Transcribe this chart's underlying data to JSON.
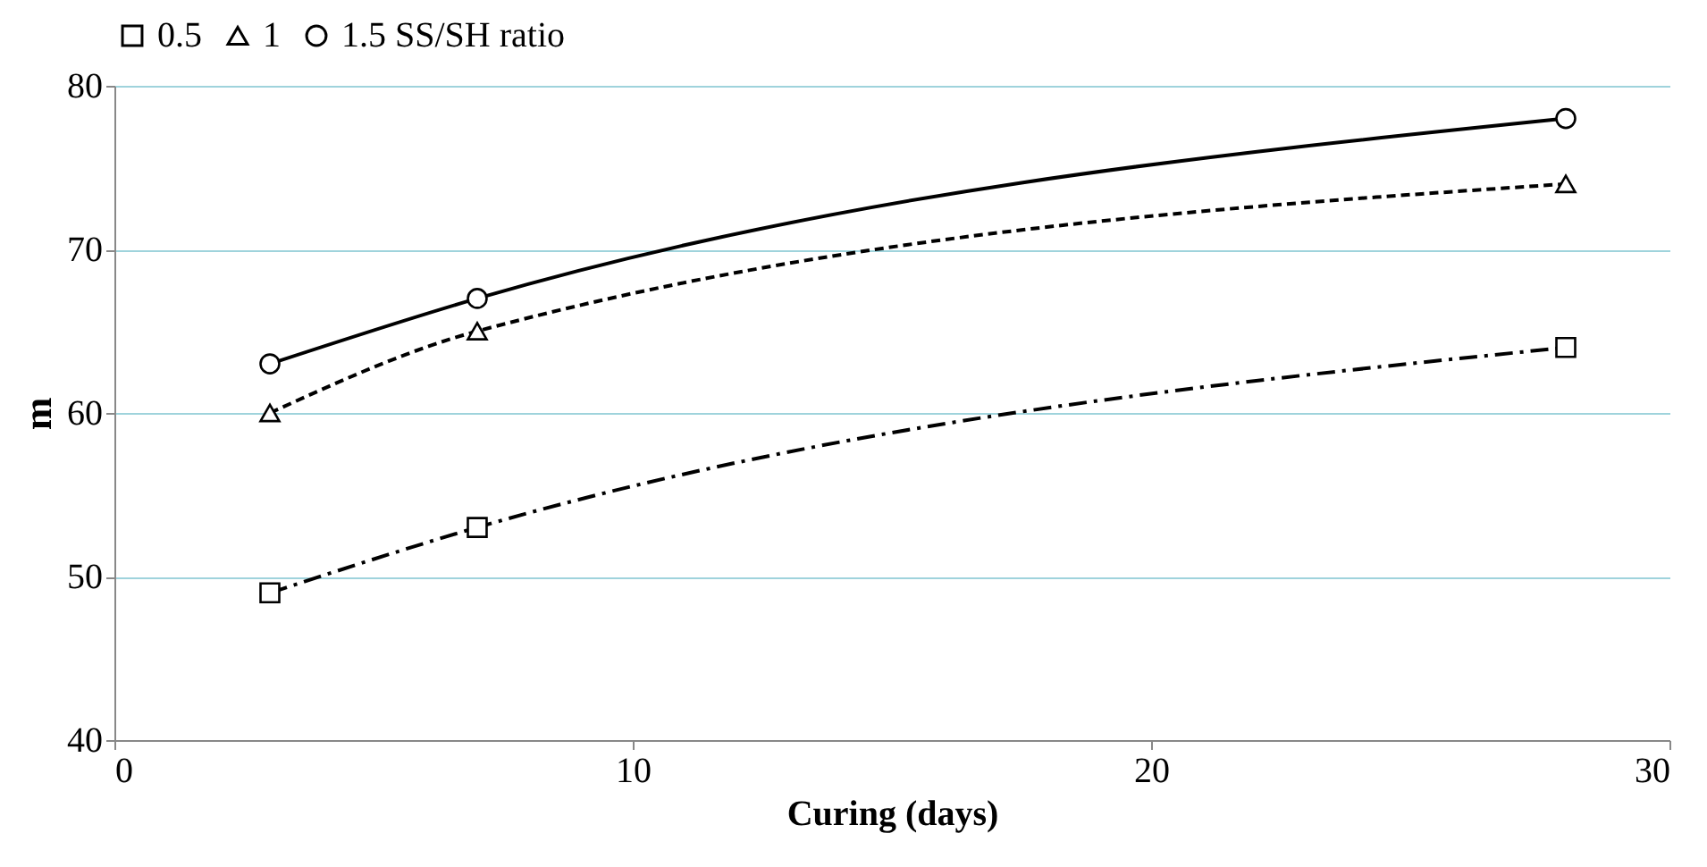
{
  "chart_data": {
    "type": "line",
    "xlabel": "Curing (days)",
    "ylabel": "m",
    "x": [
      3,
      7,
      28
    ],
    "series": [
      {
        "name": "0.5",
        "color": "#000000",
        "values": [
          49,
          53,
          64
        ],
        "marker": "square",
        "line_style": "dashed"
      },
      {
        "name": "1",
        "color": "#000000",
        "values": [
          60,
          65,
          74
        ],
        "marker": "triangle",
        "line_style": "dotted"
      },
      {
        "name": "1.5 SS/SH ratio",
        "color": "#000000",
        "values": [
          63,
          67,
          78
        ],
        "marker": "circle",
        "line_style": "solid"
      }
    ],
    "xlim": [
      0,
      30
    ],
    "xticks": [
      0,
      10,
      20,
      30
    ],
    "ylim": [
      40,
      80
    ],
    "yticks": [
      40,
      50,
      60,
      70,
      80
    ],
    "grid": "y",
    "legend": "top"
  }
}
